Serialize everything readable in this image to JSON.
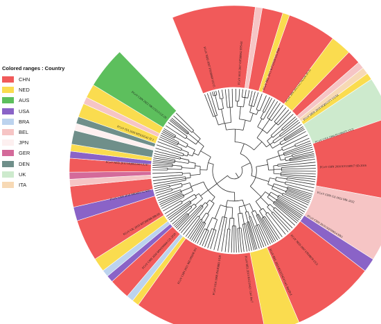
{
  "legend": {
    "title": "Colored ranges : Country",
    "items": [
      {
        "name": "CHN",
        "color": "#f15a5a"
      },
      {
        "name": "NED",
        "color": "#fadc4f"
      },
      {
        "name": "AUS",
        "color": "#5dbf5d"
      },
      {
        "name": "USA",
        "color": "#8a63c7"
      },
      {
        "name": "BRA",
        "color": "#bcd3ee"
      },
      {
        "name": "BEL",
        "color": "#f6c5c5"
      },
      {
        "name": "JPN",
        "color": "#fdf0f0"
      },
      {
        "name": "GER",
        "color": "#d46a9a"
      },
      {
        "name": "DEN",
        "color": "#6f8f8a"
      },
      {
        "name": "UK",
        "color": "#cdeacd"
      },
      {
        "name": "ITA",
        "color": "#f7d9b5"
      }
    ]
  },
  "tree": {
    "ring": [
      {
        "code": "CHN",
        "span": 12
      },
      {
        "code": "BEL",
        "span": 1
      },
      {
        "code": "CHN",
        "span": 3
      },
      {
        "code": "NED",
        "span": 1
      },
      {
        "code": "CHN",
        "span": 7
      },
      {
        "code": "NED",
        "span": 3
      },
      {
        "code": "CHN",
        "span": 2
      },
      {
        "code": "BEL",
        "span": 1
      },
      {
        "code": "ITA",
        "span": 1
      },
      {
        "code": "NED",
        "span": 1
      },
      {
        "code": "UK",
        "span": 6
      },
      {
        "code": "CHN",
        "span": 12
      },
      {
        "code": "BEL",
        "span": 9
      },
      {
        "code": "USA",
        "span": 2
      },
      {
        "code": "CHN",
        "span": 12
      },
      {
        "code": "NED",
        "span": 5
      },
      {
        "code": "CHN",
        "span": 19
      },
      {
        "code": "NED",
        "span": 1
      },
      {
        "code": "BRA",
        "span": 1
      },
      {
        "code": "CHN",
        "span": 3
      },
      {
        "code": "USA",
        "span": 1
      },
      {
        "code": "BRA",
        "span": 1
      },
      {
        "code": "NED",
        "span": 2
      },
      {
        "code": "CHN",
        "span": 6
      },
      {
        "code": "USA",
        "span": 2
      },
      {
        "code": "CHN",
        "span": 3
      },
      {
        "code": "BEL",
        "span": 1
      },
      {
        "code": "GER",
        "span": 1
      },
      {
        "code": "CHN",
        "span": 2
      },
      {
        "code": "USA",
        "span": 1
      },
      {
        "code": "NED",
        "span": 1
      },
      {
        "code": "DEN",
        "span": 2
      },
      {
        "code": "JPN",
        "span": 1
      },
      {
        "code": "DEN",
        "span": 1
      },
      {
        "code": "NED",
        "span": 2
      },
      {
        "code": "BEL",
        "span": 1
      },
      {
        "code": "NED",
        "span": 2
      },
      {
        "code": "AUS",
        "span": 6
      }
    ],
    "labels": [
      "FCoV NED 2007 FJ938060 UU15",
      "FCoV AUS 2017 OP598962 FPS-02",
      "FCoV BEL 2015 KJ722529 UG-FH8",
      "FCoV JPN 2013 LC742526 JP-To",
      "FCoV DEN 2018 HQ012371 UU54",
      "FCoV USA 1994 EU186072 UU2",
      "FCoV CHN 2016 KY238917 SD-2016",
      "FCoV CHN GZ-2022 MK-2022",
      "FCoV CHN 2019 OQ709014 HN1",
      "FCoV NED 2007 FJ938059 UU2",
      "FCoV BEL 2013 KU215424 Cat1 day28 d",
      "FCoV BEL 2013 KU215421 Cat1 day7",
      "FCoV USA 1968 JN183883 UU8",
      "FCoV CHN 2021 MZ199208 JS1",
      "FCoV CHN 2020 MW030604 GX-2020",
      "FCoV UK 2019 MT286566 HB-03",
      "FCoV CHN 2018 MK695712 SH1",
      "FCoV NED 2010 HQ892390 UU47",
      "FCoV ITA 2020 MT633542 IT-1",
      "FCoV CHN 2022 OR115213 GZ-29"
    ]
  }
}
